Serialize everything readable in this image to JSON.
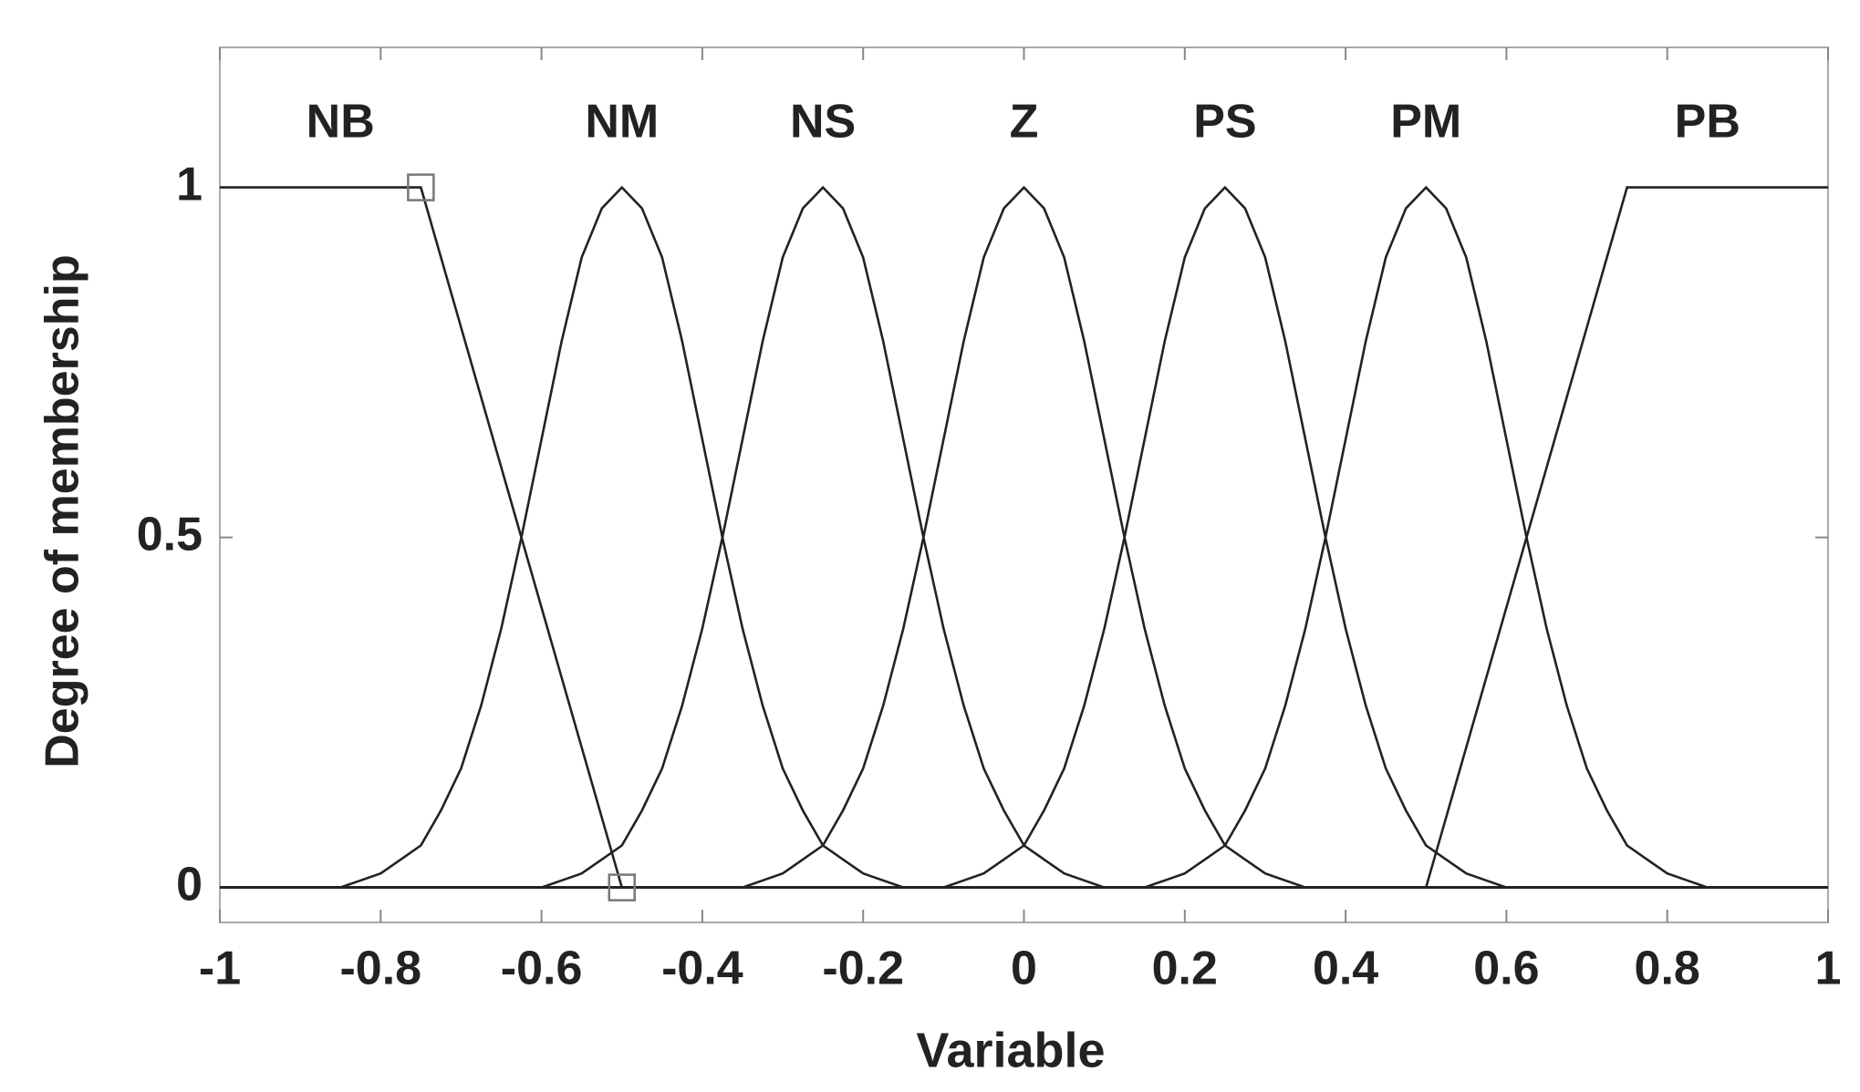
{
  "chart_data": {
    "type": "line",
    "xlabel": "Variable",
    "ylabel": "Degree of membership",
    "xlim": [
      -1,
      1
    ],
    "ylim": [
      -0.05,
      1.2
    ],
    "xticks": [
      -1,
      -0.8,
      -0.6,
      -0.4,
      -0.2,
      0,
      0.2,
      0.4,
      0.6,
      0.8,
      1
    ],
    "yticks": [
      0,
      0.5,
      1
    ],
    "grid": false,
    "x": [
      -1,
      -0.975,
      -0.95,
      -0.925,
      -0.9,
      -0.875,
      -0.85,
      -0.825,
      -0.8,
      -0.775,
      -0.75,
      -0.725,
      -0.7,
      -0.675,
      -0.65,
      -0.625,
      -0.6,
      -0.575,
      -0.55,
      -0.525,
      -0.5,
      -0.475,
      -0.45,
      -0.425,
      -0.4,
      -0.375,
      -0.35,
      -0.325,
      -0.3,
      -0.275,
      -0.25,
      -0.225,
      -0.2,
      -0.175,
      -0.15,
      -0.125,
      -0.1,
      -0.075,
      -0.05,
      -0.025,
      0,
      0.025,
      0.05,
      0.075,
      0.1,
      0.125,
      0.15,
      0.175,
      0.2,
      0.225,
      0.25,
      0.275,
      0.3,
      0.325,
      0.35,
      0.375,
      0.4,
      0.425,
      0.45,
      0.475,
      0.5,
      0.525,
      0.55,
      0.575,
      0.6,
      0.625,
      0.65,
      0.675,
      0.7,
      0.725,
      0.75,
      0.775,
      0.8,
      0.825,
      0.85,
      0.875,
      0.9,
      0.925,
      0.95,
      0.975,
      1
    ],
    "series": [
      {
        "name": "NB",
        "color": "#222222",
        "values": [
          1,
          1,
          1,
          1,
          1,
          1,
          1,
          1,
          1,
          1,
          1,
          0.9,
          0.8,
          0.7,
          0.6,
          0.5,
          0.4,
          0.3,
          0.2,
          0.1,
          0,
          0,
          0,
          0,
          0,
          0,
          0,
          0,
          0,
          0,
          0,
          0,
          0,
          0,
          0,
          0,
          0,
          0,
          0,
          0,
          0,
          0,
          0,
          0,
          0,
          0,
          0,
          0,
          0,
          0,
          0,
          0,
          0,
          0,
          0,
          0,
          0,
          0,
          0,
          0,
          0,
          0,
          0,
          0,
          0,
          0,
          0,
          0,
          0,
          0,
          0,
          0,
          0,
          0,
          0,
          0,
          0,
          0,
          0,
          0,
          0
        ]
      },
      {
        "name": "NM",
        "color": "#222222",
        "values": [
          0,
          0,
          0,
          0,
          0,
          0,
          0,
          0.01,
          0.02,
          0.04,
          0.06,
          0.11,
          0.17,
          0.26,
          0.37,
          0.5,
          0.64,
          0.78,
          0.9,
          0.97,
          1,
          0.97,
          0.9,
          0.78,
          0.64,
          0.5,
          0.37,
          0.26,
          0.17,
          0.11,
          0.06,
          0.04,
          0.02,
          0.01,
          0,
          0,
          0,
          0,
          0,
          0,
          0,
          0,
          0,
          0,
          0,
          0,
          0,
          0,
          0,
          0,
          0,
          0,
          0,
          0,
          0,
          0,
          0,
          0,
          0,
          0,
          0,
          0,
          0,
          0,
          0,
          0,
          0,
          0,
          0,
          0,
          0,
          0,
          0,
          0,
          0,
          0,
          0,
          0,
          0,
          0,
          0
        ]
      },
      {
        "name": "NS",
        "color": "#222222",
        "values": [
          0,
          0,
          0,
          0,
          0,
          0,
          0,
          0,
          0,
          0,
          0,
          0,
          0,
          0,
          0,
          0,
          0,
          0.01,
          0.02,
          0.04,
          0.06,
          0.11,
          0.17,
          0.26,
          0.37,
          0.5,
          0.64,
          0.78,
          0.9,
          0.97,
          1,
          0.97,
          0.9,
          0.78,
          0.64,
          0.5,
          0.37,
          0.26,
          0.17,
          0.11,
          0.06,
          0.04,
          0.02,
          0.01,
          0,
          0,
          0,
          0,
          0,
          0,
          0,
          0,
          0,
          0,
          0,
          0,
          0,
          0,
          0,
          0,
          0,
          0,
          0,
          0,
          0,
          0,
          0,
          0,
          0,
          0,
          0,
          0,
          0,
          0,
          0,
          0,
          0,
          0,
          0,
          0,
          0
        ]
      },
      {
        "name": "Z",
        "color": "#222222",
        "values": [
          0,
          0,
          0,
          0,
          0,
          0,
          0,
          0,
          0,
          0,
          0,
          0,
          0,
          0,
          0,
          0,
          0,
          0,
          0,
          0,
          0,
          0,
          0,
          0,
          0,
          0,
          0,
          0.01,
          0.02,
          0.04,
          0.06,
          0.11,
          0.17,
          0.26,
          0.37,
          0.5,
          0.64,
          0.78,
          0.9,
          0.97,
          1,
          0.97,
          0.9,
          0.78,
          0.64,
          0.5,
          0.37,
          0.26,
          0.17,
          0.11,
          0.06,
          0.04,
          0.02,
          0.01,
          0,
          0,
          0,
          0,
          0,
          0,
          0,
          0,
          0,
          0,
          0,
          0,
          0,
          0,
          0,
          0,
          0,
          0,
          0,
          0,
          0,
          0,
          0,
          0,
          0,
          0,
          0
        ]
      },
      {
        "name": "PS",
        "color": "#222222",
        "values": [
          0,
          0,
          0,
          0,
          0,
          0,
          0,
          0,
          0,
          0,
          0,
          0,
          0,
          0,
          0,
          0,
          0,
          0,
          0,
          0,
          0,
          0,
          0,
          0,
          0,
          0,
          0,
          0,
          0,
          0,
          0,
          0,
          0,
          0,
          0,
          0,
          0,
          0.01,
          0.02,
          0.04,
          0.06,
          0.11,
          0.17,
          0.26,
          0.37,
          0.5,
          0.64,
          0.78,
          0.9,
          0.97,
          1,
          0.97,
          0.9,
          0.78,
          0.64,
          0.5,
          0.37,
          0.26,
          0.17,
          0.11,
          0.06,
          0.04,
          0.02,
          0.01,
          0,
          0,
          0,
          0,
          0,
          0,
          0,
          0,
          0,
          0,
          0,
          0,
          0,
          0,
          0,
          0,
          0
        ]
      },
      {
        "name": "PM",
        "color": "#222222",
        "values": [
          0,
          0,
          0,
          0,
          0,
          0,
          0,
          0,
          0,
          0,
          0,
          0,
          0,
          0,
          0,
          0,
          0,
          0,
          0,
          0,
          0,
          0,
          0,
          0,
          0,
          0,
          0,
          0,
          0,
          0,
          0,
          0,
          0,
          0,
          0,
          0,
          0,
          0,
          0,
          0,
          0,
          0,
          0,
          0,
          0,
          0,
          0,
          0.01,
          0.02,
          0.04,
          0.06,
          0.11,
          0.17,
          0.26,
          0.37,
          0.5,
          0.64,
          0.78,
          0.9,
          0.97,
          1,
          0.97,
          0.9,
          0.78,
          0.64,
          0.5,
          0.37,
          0.26,
          0.17,
          0.11,
          0.06,
          0.04,
          0.02,
          0.01,
          0,
          0,
          0,
          0,
          0,
          0,
          0
        ]
      },
      {
        "name": "PB",
        "color": "#222222",
        "values": [
          0,
          0,
          0,
          0,
          0,
          0,
          0,
          0,
          0,
          0,
          0,
          0,
          0,
          0,
          0,
          0,
          0,
          0,
          0,
          0,
          0,
          0,
          0,
          0,
          0,
          0,
          0,
          0,
          0,
          0,
          0,
          0,
          0,
          0,
          0,
          0,
          0,
          0,
          0,
          0,
          0,
          0,
          0,
          0,
          0,
          0,
          0,
          0,
          0,
          0,
          0,
          0,
          0,
          0,
          0,
          0,
          0,
          0,
          0,
          0,
          0,
          0.1,
          0.2,
          0.3,
          0.4,
          0.5,
          0.6,
          0.7,
          0.8,
          0.9,
          1,
          1,
          1,
          1,
          1,
          1,
          1,
          1,
          1,
          1,
          1
        ]
      }
    ],
    "control_points": {
      "x": [
        -0.75,
        -0.5
      ],
      "y": [
        1,
        0
      ],
      "color": "#777777"
    }
  }
}
